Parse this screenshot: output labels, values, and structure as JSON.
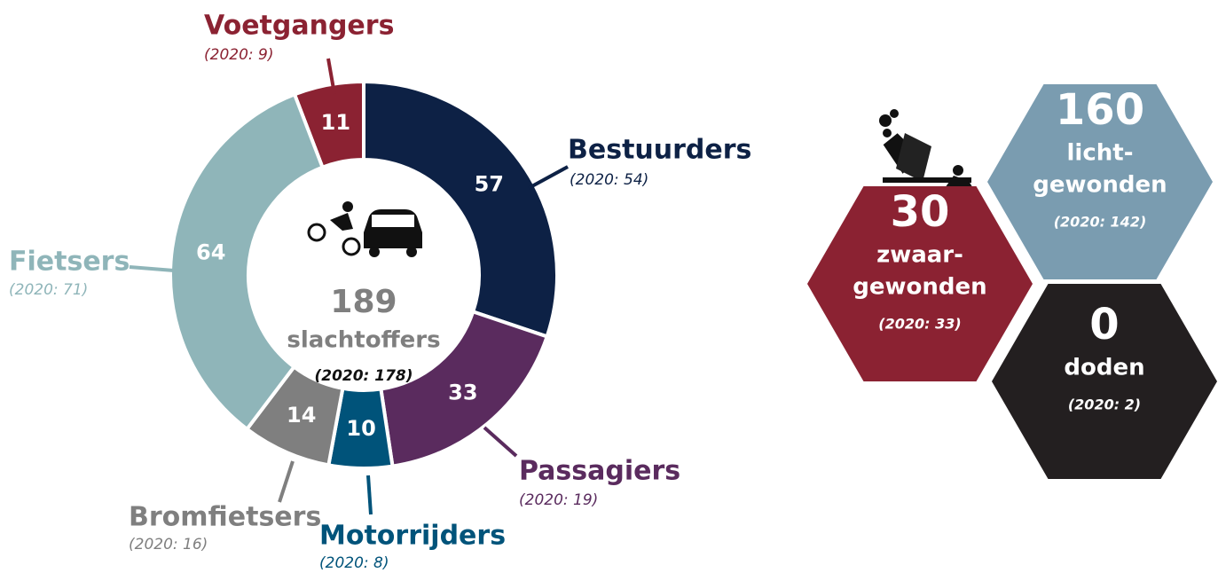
{
  "chart_data": {
    "type": "donut",
    "categories": [
      "Voetgangers",
      "Bestuurders",
      "Passagiers",
      "Motorrijders",
      "Bromfietsers",
      "Fietsers"
    ],
    "values": [
      11,
      57,
      33,
      10,
      14,
      64
    ],
    "colors": [
      "#8b2232",
      "#0d2145",
      "#5a2b5e",
      "#00537a",
      "#7f7f7f",
      "#8fb5b9"
    ],
    "sublabels": [
      "(2020: 9)",
      "(2020: 54)",
      "(2020: 19)",
      "(2020: 8)",
      "(2020: 16)",
      "(2020: 71)"
    ],
    "center": {
      "value": 189,
      "label": "slachtoffers",
      "note": "(2020: 178)"
    }
  },
  "hexagons": [
    {
      "value": 30,
      "lines": [
        "zwaar-",
        "gewonden"
      ],
      "note": "(2020: 33)",
      "color": "#8b2232"
    },
    {
      "value": 160,
      "lines": [
        "licht-",
        "gewonden"
      ],
      "note": "(2020: 142)",
      "color": "#7a9cb0"
    },
    {
      "value": 0,
      "lines": [
        "doden"
      ],
      "note": "(2020: 2)",
      "color": "#231f20"
    }
  ]
}
